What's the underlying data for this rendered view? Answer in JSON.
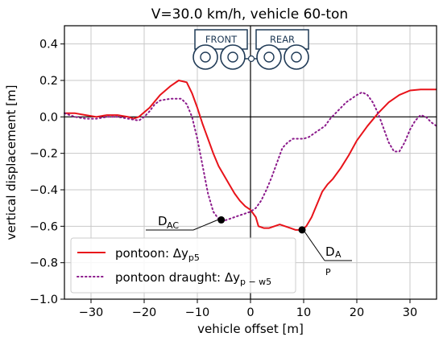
{
  "chart_data": {
    "type": "line",
    "title": "V=30.0 km/h, vehicle 60-ton",
    "xlabel": "vehicle offset [m]",
    "ylabel": "vertical displacement [m]",
    "xlim": [
      -35,
      35
    ],
    "ylim": [
      -1.0,
      0.5
    ],
    "xticks": [
      -30,
      -20,
      -10,
      0,
      10,
      20,
      30
    ],
    "yticks": [
      -1.0,
      -0.8,
      -0.6,
      -0.4,
      -0.2,
      0.0,
      0.2,
      0.4
    ],
    "xtick_labels": [
      "−30",
      "−20",
      "−10",
      "0",
      "10",
      "20",
      "30"
    ],
    "ytick_labels": [
      "−1.0",
      "−0.8",
      "−0.6",
      "−0.4",
      "−0.2",
      "0.0",
      "0.2",
      "0.4"
    ],
    "grid": true,
    "legend_position": "lower-left",
    "series": [
      {
        "name": "pontoon: Δy_p5",
        "legend_main": "pontoon: Δy",
        "legend_sub": "p5",
        "color": "#e8131a",
        "style": "solid",
        "points": [
          [
            -35,
            0.02
          ],
          [
            -33,
            0.02
          ],
          [
            -31,
            0.01
          ],
          [
            -29,
            0.0
          ],
          [
            -27,
            0.01
          ],
          [
            -25,
            0.01
          ],
          [
            -23,
            0.0
          ],
          [
            -22,
            -0.01
          ],
          [
            -21,
            0.0
          ],
          [
            -19,
            0.05
          ],
          [
            -17,
            0.12
          ],
          [
            -15,
            0.17
          ],
          [
            -13.5,
            0.2
          ],
          [
            -12,
            0.19
          ],
          [
            -11,
            0.13
          ],
          [
            -10,
            0.05
          ],
          [
            -9,
            -0.04
          ],
          [
            -8,
            -0.12
          ],
          [
            -7,
            -0.2
          ],
          [
            -6,
            -0.27
          ],
          [
            -5,
            -0.32
          ],
          [
            -4,
            -0.37
          ],
          [
            -3,
            -0.42
          ],
          [
            -2,
            -0.46
          ],
          [
            -1,
            -0.49
          ],
          [
            0,
            -0.51
          ],
          [
            1,
            -0.55
          ],
          [
            1.5,
            -0.6
          ],
          [
            2.5,
            -0.61
          ],
          [
            3.5,
            -0.61
          ],
          [
            4.5,
            -0.6
          ],
          [
            5.5,
            -0.59
          ],
          [
            6.5,
            -0.6
          ],
          [
            7.5,
            -0.61
          ],
          [
            8.5,
            -0.62
          ],
          [
            9.7,
            -0.62
          ],
          [
            10.5,
            -0.6
          ],
          [
            11.5,
            -0.55
          ],
          [
            12.5,
            -0.48
          ],
          [
            13.5,
            -0.41
          ],
          [
            14.5,
            -0.37
          ],
          [
            15.5,
            -0.34
          ],
          [
            17,
            -0.28
          ],
          [
            18.5,
            -0.21
          ],
          [
            20,
            -0.13
          ],
          [
            22,
            -0.05
          ],
          [
            24,
            0.02
          ],
          [
            26,
            0.08
          ],
          [
            28,
            0.12
          ],
          [
            30,
            0.145
          ],
          [
            32,
            0.15
          ],
          [
            35,
            0.15
          ]
        ]
      },
      {
        "name": "pontoon draught: Δy_p-w5",
        "legend_main": "pontoon draught: Δy",
        "legend_sub": "p − w5",
        "color": "#8b1a8b",
        "style": "dotted",
        "points": [
          [
            -35,
            0.02
          ],
          [
            -33,
            0.0
          ],
          [
            -31,
            -0.01
          ],
          [
            -29,
            -0.01
          ],
          [
            -27,
            0.0
          ],
          [
            -25,
            0.0
          ],
          [
            -23,
            -0.01
          ],
          [
            -21,
            -0.02
          ],
          [
            -20,
            0.0
          ],
          [
            -19,
            0.03
          ],
          [
            -18,
            0.07
          ],
          [
            -17,
            0.09
          ],
          [
            -15,
            0.1
          ],
          [
            -13,
            0.1
          ],
          [
            -12,
            0.07
          ],
          [
            -11,
            0.0
          ],
          [
            -10,
            -0.12
          ],
          [
            -9,
            -0.27
          ],
          [
            -8,
            -0.42
          ],
          [
            -7,
            -0.52
          ],
          [
            -6,
            -0.56
          ],
          [
            -5,
            -0.57
          ],
          [
            -4,
            -0.56
          ],
          [
            -3,
            -0.55
          ],
          [
            -2,
            -0.54
          ],
          [
            -1,
            -0.53
          ],
          [
            0,
            -0.52
          ],
          [
            1,
            -0.5
          ],
          [
            2,
            -0.46
          ],
          [
            3,
            -0.4
          ],
          [
            4,
            -0.33
          ],
          [
            5,
            -0.25
          ],
          [
            6,
            -0.17
          ],
          [
            7,
            -0.14
          ],
          [
            8,
            -0.12
          ],
          [
            9,
            -0.12
          ],
          [
            10,
            -0.12
          ],
          [
            11,
            -0.11
          ],
          [
            12,
            -0.09
          ],
          [
            13,
            -0.07
          ],
          [
            14,
            -0.05
          ],
          [
            15,
            -0.01
          ],
          [
            16,
            0.02
          ],
          [
            17,
            0.05
          ],
          [
            18,
            0.08
          ],
          [
            19,
            0.1
          ],
          [
            20,
            0.12
          ],
          [
            21,
            0.135
          ],
          [
            22,
            0.12
          ],
          [
            23,
            0.08
          ],
          [
            24,
            0.02
          ],
          [
            25,
            -0.06
          ],
          [
            26,
            -0.14
          ],
          [
            27,
            -0.19
          ],
          [
            28,
            -0.19
          ],
          [
            29,
            -0.14
          ],
          [
            30,
            -0.07
          ],
          [
            31,
            -0.02
          ],
          [
            32,
            0.01
          ],
          [
            33,
            0.0
          ],
          [
            34,
            -0.03
          ],
          [
            35,
            -0.05
          ]
        ]
      }
    ],
    "markers": [
      {
        "x": -5.5,
        "y": -0.565
      },
      {
        "x": 9.7,
        "y": -0.62
      }
    ],
    "annotations": [
      {
        "main": "D",
        "sub": "AC"
      },
      {
        "main": "D",
        "sub": "A",
        "sub2": "P"
      }
    ],
    "vehicle_labels": {
      "front": "FRONT",
      "rear": "REAR"
    }
  }
}
